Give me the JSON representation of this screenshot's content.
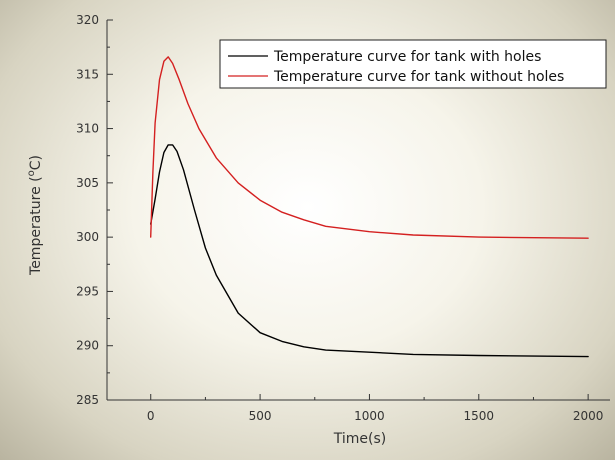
{
  "chart_data": {
    "type": "line",
    "xlabel": "Time(s)",
    "ylabel_main": "Temperature (",
    "ylabel_sup": "o",
    "ylabel_tail": "C)",
    "xlim": [
      -200,
      2100
    ],
    "ylim": [
      285,
      320
    ],
    "xticks": [
      0,
      500,
      1000,
      1500,
      2000
    ],
    "yticks": [
      285,
      290,
      295,
      300,
      305,
      310,
      315,
      320
    ],
    "legend_position": "top-right",
    "grid": false,
    "series": [
      {
        "name": "Temperature curve for tank with holes",
        "color": "#000000",
        "x": [
          0,
          20,
          40,
          60,
          80,
          100,
          120,
          150,
          200,
          250,
          300,
          400,
          500,
          600,
          700,
          800,
          1000,
          1200,
          1500,
          2000
        ],
        "y": [
          301.2,
          303.5,
          306.0,
          307.8,
          308.5,
          308.5,
          307.9,
          306.2,
          302.5,
          299.0,
          296.5,
          293.0,
          291.2,
          290.4,
          289.9,
          289.6,
          289.4,
          289.2,
          289.1,
          289.0
        ]
      },
      {
        "name": "Temperature curve for tank without holes",
        "color": "#d42020",
        "x": [
          0,
          10,
          20,
          40,
          60,
          80,
          100,
          130,
          170,
          220,
          300,
          400,
          500,
          600,
          700,
          800,
          1000,
          1200,
          1500,
          2000
        ],
        "y": [
          300.0,
          306.0,
          310.5,
          314.5,
          316.2,
          316.6,
          316.0,
          314.5,
          312.3,
          310.0,
          307.3,
          305.0,
          303.4,
          302.3,
          301.6,
          301.0,
          300.5,
          300.2,
          300.0,
          299.9
        ]
      }
    ]
  }
}
